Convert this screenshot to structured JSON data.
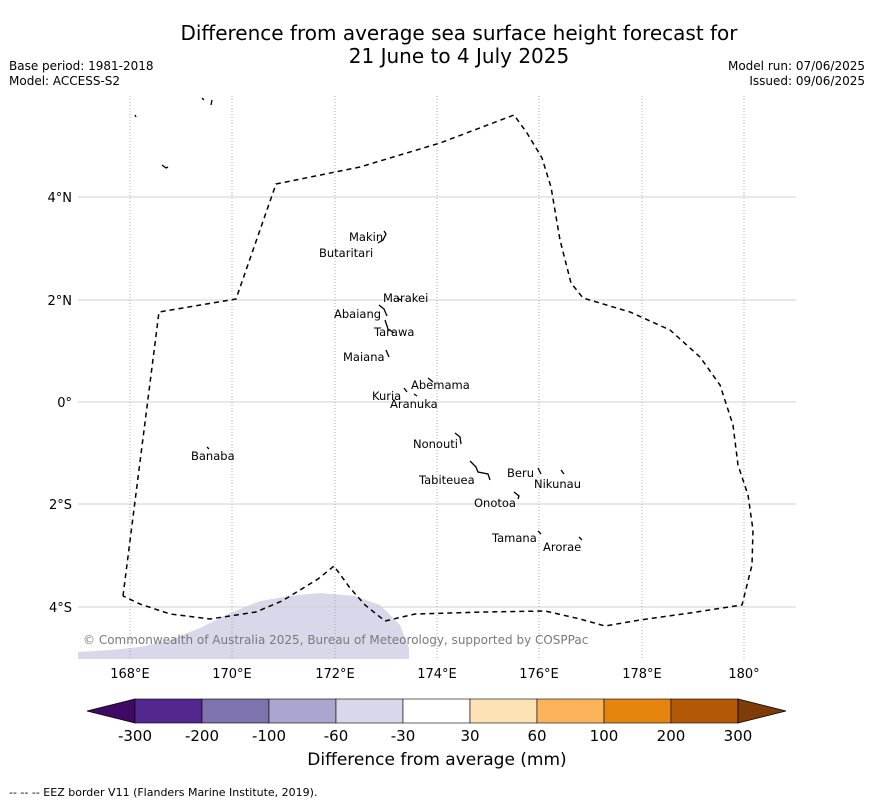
{
  "title_line1": "Difference from average sea surface height forecast for",
  "title_line2": "21 June to 4 July 2025",
  "base_period": "Base period: 1981-2018",
  "model": "Model: ACCESS-S2",
  "model_run": "Model run: 07/06/2025",
  "issued": "Issued: 09/06/2025",
  "copyright": "© Commonwealth of Australia 2025, Bureau of Meteorology, supported by COSPPac",
  "colorbar_label": "Difference from average (mm)",
  "eez_note": "--  --  -- EEZ border V11 (Flanders Marine Institute, 2019).",
  "y_ticks": [
    "4°N",
    "2°N",
    "0°",
    "2°S",
    "4°S"
  ],
  "x_ticks": [
    "168°E",
    "170°E",
    "172°E",
    "174°E",
    "176°E",
    "178°E",
    "180°"
  ],
  "colorbar": {
    "ticks": [
      "-300",
      "-200",
      "-100",
      "-60",
      "-30",
      "30",
      "60",
      "100",
      "200",
      "300"
    ],
    "colors": [
      "#3f0a64",
      "#54278f",
      "#7f73ad",
      "#aaa6cf",
      "#d8d8ea",
      "#ffffff",
      "#fde2b6",
      "#fdb35c",
      "#e5840f",
      "#b35806",
      "#7f3b08"
    ]
  },
  "places": [
    {
      "name": "Makin"
    },
    {
      "name": "Butaritari"
    },
    {
      "name": "Marakei"
    },
    {
      "name": "Abaiang"
    },
    {
      "name": "Tarawa"
    },
    {
      "name": "Maiana"
    },
    {
      "name": "Abemama"
    },
    {
      "name": "Kuria"
    },
    {
      "name": "Aranuka"
    },
    {
      "name": "Banaba"
    },
    {
      "name": "Nonouti"
    },
    {
      "name": "Tabiteuea"
    },
    {
      "name": "Beru"
    },
    {
      "name": "Nikunau"
    },
    {
      "name": "Onotoa"
    },
    {
      "name": "Tamana"
    },
    {
      "name": "Arorae"
    }
  ]
}
